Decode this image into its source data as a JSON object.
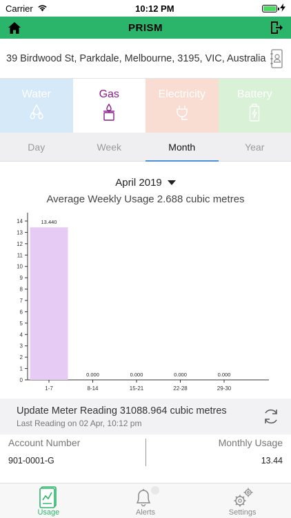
{
  "status_bar": {
    "carrier": "Carrier",
    "time": "10:12 PM"
  },
  "header": {
    "title": "PRISM",
    "home_icon": "home-icon",
    "logout_icon": "logout-icon"
  },
  "address": {
    "text": "39 Birdwood St, Parkdale, Melbourne, 3195, VIC, Australia",
    "icon": "contact-book-icon"
  },
  "utilities": [
    {
      "label": "Water",
      "icon": "water-drops-icon",
      "color": "#d6e9f9"
    },
    {
      "label": "Gas",
      "icon": "gas-burner-icon",
      "color": "#ffffff",
      "selected": true
    },
    {
      "label": "Electricity",
      "icon": "plug-icon",
      "color": "#f9dcd2"
    },
    {
      "label": "Battery",
      "icon": "battery-icon",
      "color": "#d9f1d6"
    }
  ],
  "periods": [
    {
      "label": "Day"
    },
    {
      "label": "Week"
    },
    {
      "label": "Month",
      "selected": true
    },
    {
      "label": "Year"
    }
  ],
  "month_selector": {
    "label": "April 2019"
  },
  "average": {
    "text": "Average Weekly Usage 2.688 cubic metres"
  },
  "chart_data": {
    "type": "bar",
    "categories": [
      "1-7",
      "8-14",
      "15-21",
      "22-28",
      "29-30"
    ],
    "values": [
      13.44,
      0,
      0,
      0,
      0
    ],
    "value_labels": [
      "13.440",
      "0.000",
      "0.000",
      "0.000",
      "0.000"
    ],
    "y_ticks": [
      0,
      1,
      2,
      3,
      4,
      5,
      6,
      7,
      8,
      9,
      10,
      11,
      12,
      13,
      14
    ],
    "ylim": [
      0,
      14
    ],
    "bar_color": "#e6ccf5",
    "grid": false
  },
  "meter": {
    "title": "Update Meter Reading 31088.964 cubic metres",
    "subtitle": "Last Reading on 02 Apr, 10:12 pm",
    "icon": "refresh-icon"
  },
  "account": {
    "number_label": "Account Number",
    "number_value": "901-0001-G",
    "usage_label": "Monthly Usage",
    "usage_value": "13.44"
  },
  "tabbar": [
    {
      "label": "Usage",
      "icon": "usage-report-icon",
      "selected": true
    },
    {
      "label": "Alerts",
      "icon": "bell-icon"
    },
    {
      "label": "Settings",
      "icon": "gears-icon"
    }
  ],
  "colors": {
    "brand": "#2bb56a",
    "gas": "#8a1a8a",
    "tab_underline": "#4a8fd8"
  }
}
